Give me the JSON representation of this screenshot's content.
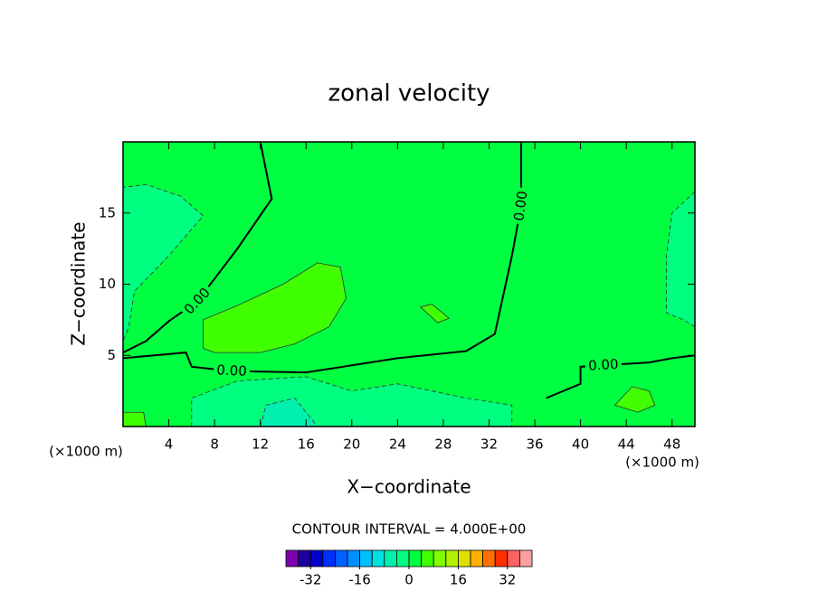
{
  "chart_data": {
    "type": "contour",
    "title": "zonal velocity",
    "xlabel": "X−coordinate",
    "ylabel": "Z−coordinate",
    "xunit": "(×1000 m)",
    "yunit": "(×1000 m)",
    "xlim": [
      0,
      50
    ],
    "ylim": [
      0,
      20
    ],
    "xticks": [
      4,
      8,
      12,
      16,
      20,
      24,
      28,
      32,
      36,
      40,
      44,
      48
    ],
    "yticks": [
      5,
      10,
      15
    ],
    "background_level": 2,
    "regions": [
      {
        "level": -2,
        "x": [
          0,
          0,
          2,
          5,
          7,
          4,
          1,
          0.5
        ],
        "y": [
          6,
          16.8,
          17,
          16.2,
          14.8,
          12,
          9.5,
          7
        ]
      },
      {
        "level": -2,
        "x": [
          50,
          48,
          47.5,
          47.5,
          49,
          50
        ],
        "y": [
          16.5,
          15,
          12,
          8,
          7.5,
          7
        ]
      },
      {
        "level": 6,
        "x": [
          7,
          7,
          10,
          14,
          17,
          19,
          19.5,
          18,
          15,
          12,
          8
        ],
        "y": [
          5.5,
          7.5,
          8.5,
          10,
          11.5,
          11.2,
          9,
          7,
          5.8,
          5.2,
          5.2
        ]
      },
      {
        "level": -2,
        "x": [
          6,
          6,
          10,
          16,
          20,
          24,
          30,
          34,
          34
        ],
        "y": [
          0,
          2,
          3.2,
          3.5,
          2.5,
          3,
          2,
          1.5,
          0
        ]
      },
      {
        "level": -6,
        "x": [
          12,
          12.5,
          15,
          16,
          17
        ],
        "y": [
          0,
          1.5,
          2,
          1,
          0
        ]
      },
      {
        "level": 6,
        "x": [
          43,
          44.5,
          46,
          46.5,
          45
        ],
        "y": [
          1.5,
          2.8,
          2.5,
          1.5,
          1
        ]
      },
      {
        "level": 6,
        "x": [
          26,
          27,
          28.5,
          27.5
        ],
        "y": [
          8.4,
          8.6,
          7.6,
          7.3
        ]
      },
      {
        "level": 6,
        "x": [
          0,
          0,
          1.8,
          2
        ],
        "y": [
          0,
          1,
          1,
          0
        ]
      }
    ],
    "lines": [
      {
        "label": "0.00",
        "x": [
          12,
          13,
          10,
          6.5,
          4,
          2,
          0
        ],
        "y": [
          20,
          16,
          12.5,
          8.8,
          7.4,
          6,
          5.2
        ]
      },
      {
        "label": "0.00",
        "x": [
          0,
          5.5,
          6,
          9.5,
          16,
          24,
          30
        ],
        "y": [
          4.8,
          5.2,
          4.2,
          3.9,
          3.8,
          4.8,
          5.3
        ]
      },
      {
        "label": "0.00",
        "x": [
          30,
          32.5,
          34,
          34.8,
          34.8,
          34.8,
          34.8
        ],
        "y": [
          5.3,
          6.5,
          12,
          15.5,
          17,
          18.5,
          20
        ]
      },
      {
        "label": "0.00",
        "x": [
          37,
          40,
          40,
          42,
          46,
          48,
          50
        ],
        "y": [
          2,
          3,
          4.2,
          4.3,
          4.5,
          4.8,
          5
        ]
      }
    ],
    "contour_interval_text": "CONTOUR INTERVAL = 4.000E+00",
    "clim": [
      -40,
      40
    ],
    "colors": [
      "#8000b0",
      "#2000a0",
      "#0000d0",
      "#0030ff",
      "#0060ff",
      "#0090ff",
      "#00c0ff",
      "#00e0e0",
      "#00f0b0",
      "#00ff80",
      "#00ff40",
      "#40ff00",
      "#80ff00",
      "#b0f000",
      "#e0e000",
      "#ffb000",
      "#ff7000",
      "#ff3000",
      "#ff6060",
      "#ffa0a0"
    ],
    "cticks": [
      -32,
      -16,
      0,
      16,
      32
    ]
  }
}
